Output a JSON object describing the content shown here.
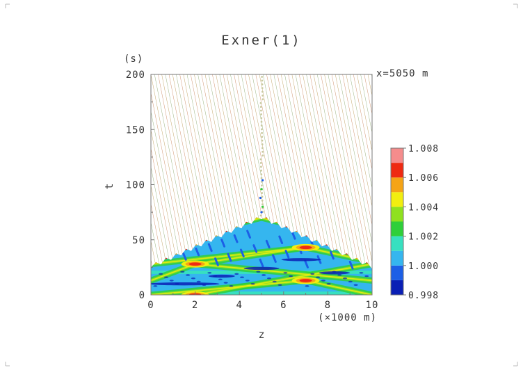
{
  "chart_data": {
    "type": "heatmap",
    "title": "Exner(1)",
    "xlabel": "z",
    "ylabel": "t",
    "x_unit": "(×1000 m)",
    "y_unit": "(s)",
    "annotation": "x=5050 m",
    "xlim": [
      0,
      10
    ],
    "ylim": [
      0,
      200
    ],
    "x_ticks": [
      "0",
      "2",
      "4",
      "6",
      "8",
      "10"
    ],
    "y_ticks": [
      "0",
      "50",
      "100",
      "150",
      "200"
    ],
    "colorbar": {
      "ticks": [
        "0.998",
        "1.000",
        "1.002",
        "1.004",
        "1.006",
        "1.008"
      ],
      "colors": [
        "#0a1fb5",
        "#1c5fe6",
        "#35b6ef",
        "#37e0c0",
        "#2fcf3a",
        "#8fe11f",
        "#f2ee10",
        "#f5a416",
        "#ee2a12",
        "#f58c8c"
      ],
      "range": [
        0.998,
        1.008
      ]
    },
    "features": {
      "wave_front_apex": {
        "z": 5.0,
        "t": 70
      },
      "wave_front_base_left": {
        "z": 0.0,
        "t": 25
      },
      "wave_front_base_right": {
        "z": 10.0,
        "t": 25
      },
      "high_spots": [
        {
          "z": 2.0,
          "t": 28
        },
        {
          "z": 7.0,
          "t": 43
        },
        {
          "z": 7.0,
          "t": 13
        },
        {
          "z": 2.0,
          "t": 0
        }
      ]
    }
  }
}
